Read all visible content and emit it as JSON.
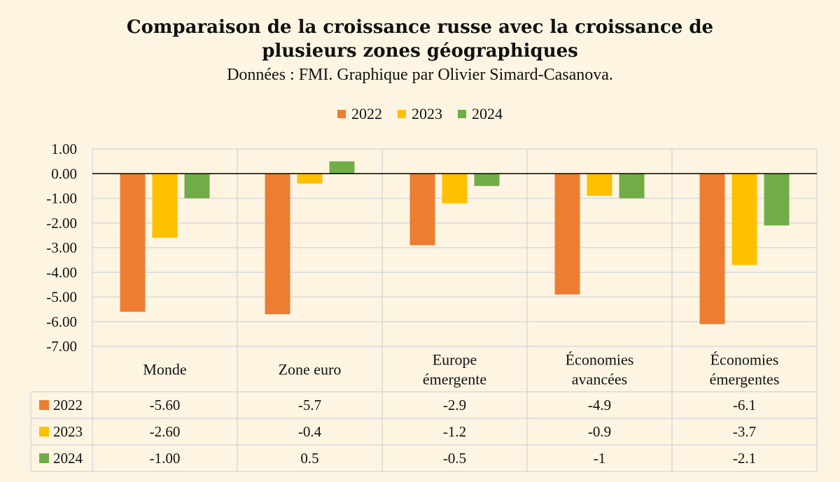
{
  "title": {
    "line1": "Comparaison de la croissance russe avec la croissance de",
    "line2": "plusieurs zones géographiques"
  },
  "subtitle": "Données : FMI. Graphique par Olivier Simard-Casanova.",
  "colors": {
    "s2022": "#ed7d31",
    "s2023": "#ffc000",
    "s2024": "#70ad47",
    "grid": "#d9d9d9",
    "background": "#fdf5e2"
  },
  "chart_data": {
    "type": "bar",
    "title": "Comparaison de la croissance russe avec la croissance de plusieurs zones géographiques",
    "categories": [
      [
        "Monde"
      ],
      [
        "Zone euro"
      ],
      [
        "Europe",
        "émergente"
      ],
      [
        "Économies",
        "avancées"
      ],
      [
        "Économies",
        "émergentes"
      ]
    ],
    "ylim": [
      -7,
      1
    ],
    "yticks": [
      "1.00",
      "0.00",
      "-1.00",
      "-2.00",
      "-3.00",
      "-4.00",
      "-5.00",
      "-6.00",
      "-7.00"
    ],
    "ytick_values": [
      1,
      0,
      -1,
      -2,
      -3,
      -4,
      -5,
      -6,
      -7
    ],
    "series": [
      {
        "name": "2022",
        "color": "#ed7d31",
        "values": [
          -5.6,
          -5.7,
          -2.9,
          -4.9,
          -6.1
        ],
        "labels": [
          "-5.60",
          "-5.7",
          "-2.9",
          "-4.9",
          "-6.1"
        ]
      },
      {
        "name": "2023",
        "color": "#ffc000",
        "values": [
          -2.6,
          -0.4,
          -1.2,
          -0.9,
          -3.7
        ],
        "labels": [
          "-2.60",
          "-0.4",
          "-1.2",
          "-0.9",
          "-3.7"
        ]
      },
      {
        "name": "2024",
        "color": "#70ad47",
        "values": [
          -1.0,
          0.5,
          -0.5,
          -1.0,
          -2.1
        ],
        "labels": [
          "-1.00",
          "0.5",
          "-0.5",
          "-1",
          "-2.1"
        ]
      }
    ],
    "legend_position": "top",
    "grid": true
  }
}
